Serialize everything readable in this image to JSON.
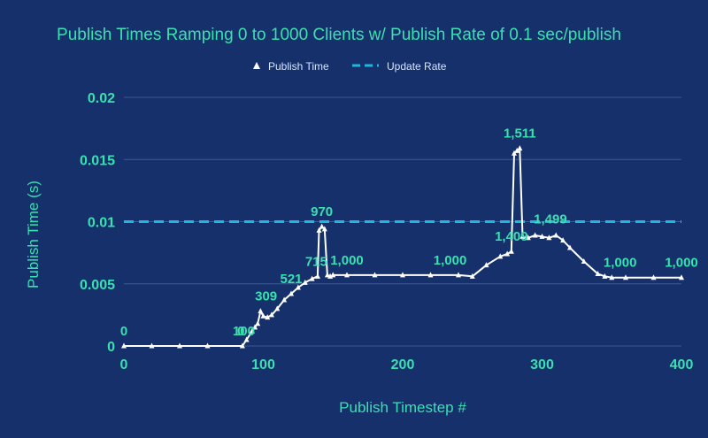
{
  "colors": {
    "background": "#15306a",
    "accent": "#39e0b0",
    "series_line": "#ffffff",
    "update_rate": "#1fb8dc",
    "gridline": "#3f5a92"
  },
  "chart_data": {
    "type": "line",
    "title": "Publish Times Ramping 0 to 1000 Clients w/ Publish Rate of 0.1 sec/publish",
    "xlabel": "Publish Timestep #",
    "ylabel": "Publish Time (s)",
    "xlim": [
      0,
      400
    ],
    "ylim": [
      0,
      0.02
    ],
    "x_ticks": [
      "0",
      "100",
      "200",
      "300",
      "400"
    ],
    "y_ticks": [
      "0",
      "0.005",
      "0.01",
      "0.015",
      "0.02"
    ],
    "grid": "horizontal",
    "legend_position": "top",
    "series": [
      {
        "name": "Publish Time",
        "marker": "triangle",
        "x": [
          0,
          20,
          40,
          60,
          85,
          88,
          92,
          94,
          96,
          98,
          100,
          103,
          106,
          110,
          115,
          120,
          125,
          130,
          135,
          139,
          140,
          142,
          144,
          146,
          148,
          150,
          160,
          180,
          200,
          220,
          240,
          250,
          260,
          270,
          275,
          278,
          280,
          282,
          284,
          286,
          290,
          295,
          300,
          305,
          310,
          315,
          320,
          330,
          340,
          345,
          350,
          360,
          380,
          400
        ],
        "y": [
          0,
          0,
          0,
          0,
          0,
          0.0005,
          0.0012,
          0.0015,
          0.0018,
          0.0028,
          0.0024,
          0.0023,
          0.0025,
          0.003,
          0.0037,
          0.0042,
          0.0047,
          0.0051,
          0.0054,
          0.0056,
          0.0093,
          0.0096,
          0.0094,
          0.0057,
          0.0056,
          0.0057,
          0.0057,
          0.0057,
          0.0057,
          0.0057,
          0.0057,
          0.0056,
          0.0065,
          0.0072,
          0.0074,
          0.0076,
          0.0155,
          0.0157,
          0.0159,
          0.0088,
          0.0087,
          0.0089,
          0.0088,
          0.0087,
          0.0089,
          0.0085,
          0.0079,
          0.0068,
          0.0058,
          0.0056,
          0.0055,
          0.0055,
          0.0055,
          0.0055
        ]
      },
      {
        "name": "Update Rate",
        "style": "dashed",
        "x": [
          0,
          400
        ],
        "y": [
          0.01,
          0.01
        ]
      }
    ],
    "data_labels": [
      {
        "text": "0",
        "x": 0,
        "y": 0
      },
      {
        "text": "100",
        "x": 86,
        "y": 0
      },
      {
        "text": "0",
        "x": 84,
        "y": 0
      },
      {
        "text": "309",
        "x": 102,
        "y": 0.0028
      },
      {
        "text": "521",
        "x": 120,
        "y": 0.0042
      },
      {
        "text": "715",
        "x": 138,
        "y": 0.0056
      },
      {
        "text": "970",
        "x": 142,
        "y": 0.0096
      },
      {
        "text": "1,000",
        "x": 160,
        "y": 0.0057
      },
      {
        "text": "1,000",
        "x": 234,
        "y": 0.0057
      },
      {
        "text": "1,409",
        "x": 278,
        "y": 0.0076
      },
      {
        "text": "1,511",
        "x": 284,
        "y": 0.0159
      },
      {
        "text": "1,499",
        "x": 306,
        "y": 0.009
      },
      {
        "text": "1,000",
        "x": 356,
        "y": 0.0055
      },
      {
        "text": "1,000",
        "x": 400,
        "y": 0.0055
      }
    ]
  }
}
